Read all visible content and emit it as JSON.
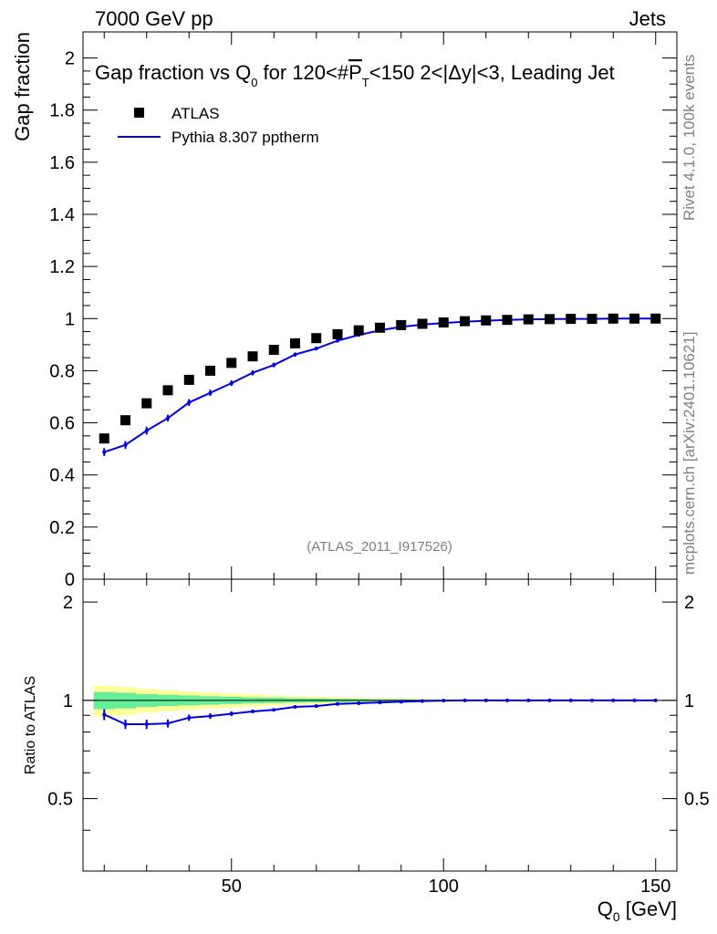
{
  "header": {
    "energy": "7000 GeV pp",
    "category": "Jets"
  },
  "side": {
    "rivet": "Rivet 4.1.0,  100k events",
    "source": "mcplots.cern.ch [arXiv:2401.10621]"
  },
  "colors": {
    "data": "#000000",
    "mc": "#0000e0",
    "band_inner": "#66ee99",
    "band_outer": "#ffff99"
  },
  "chart_data": {
    "type": "scatter",
    "title": "Gap fraction vs Q0 for 120<#PT<150  2<|Δy|<3, Leading Jet",
    "title_parts": {
      "a": "Gap fraction vs Q",
      "b": "0",
      "c": " for 120<#",
      "d": "P",
      "e": "T",
      "f": "<150  2<|Δy|<3, Leading Jet"
    },
    "analysis_label": "(ATLAS_2011_I917526)",
    "xlabel": "Q0 [GeV]",
    "xlabel_parts": {
      "a": "Q",
      "b": "0",
      "c": " [GeV]"
    },
    "ylabel": "Gap fraction",
    "ratio_ylabel": "Ratio to ATLAS",
    "xlim": [
      15,
      155
    ],
    "ylim": [
      0,
      2.1
    ],
    "ratio_ylim": [
      0.3,
      2.35
    ],
    "x_ticks": [
      "50",
      "100",
      "150"
    ],
    "y_ticks": [
      "0",
      "0.2",
      "0.4",
      "0.6",
      "0.8",
      "1",
      "1.2",
      "1.4",
      "1.6",
      "1.8",
      "2"
    ],
    "ratio_ticks": [
      "0.5",
      "1",
      "2"
    ],
    "legend": [
      {
        "name": "ATLAS",
        "style": "marker"
      },
      {
        "name": "Pythia 8.307 pptherm",
        "style": "line"
      }
    ],
    "x": [
      20,
      25,
      30,
      35,
      40,
      45,
      50,
      55,
      60,
      65,
      70,
      75,
      80,
      85,
      90,
      95,
      100,
      105,
      110,
      115,
      120,
      125,
      130,
      135,
      140,
      145,
      150
    ],
    "series": [
      {
        "name": "ATLAS",
        "values": [
          0.54,
          0.61,
          0.675,
          0.725,
          0.765,
          0.8,
          0.83,
          0.855,
          0.88,
          0.905,
          0.925,
          0.94,
          0.955,
          0.965,
          0.975,
          0.98,
          0.985,
          0.99,
          0.993,
          0.995,
          0.997,
          0.998,
          0.999,
          0.999,
          1.0,
          1.0,
          1.0
        ]
      },
      {
        "name": "Pythia 8.307 pptherm",
        "values": [
          0.488,
          0.515,
          0.57,
          0.618,
          0.678,
          0.715,
          0.752,
          0.792,
          0.822,
          0.862,
          0.885,
          0.915,
          0.937,
          0.955,
          0.968,
          0.977,
          0.983,
          0.988,
          0.992,
          0.995,
          0.997,
          0.998,
          0.999,
          0.999,
          1.0,
          1.0,
          1.0
        ],
        "errors": [
          0.015,
          0.015,
          0.015,
          0.013,
          0.013,
          0.012,
          0.011,
          0.01,
          0.009,
          0.008,
          0.007,
          0.006,
          0.005,
          0.004,
          0.003,
          0.002,
          0.002,
          0.001,
          0.001,
          0.001,
          0.001,
          0.001,
          0.001,
          0.001,
          0.001,
          0.001,
          0.001
        ]
      }
    ],
    "ratio": [
      0.905,
      0.845,
      0.845,
      0.85,
      0.885,
      0.895,
      0.91,
      0.925,
      0.935,
      0.955,
      0.96,
      0.975,
      0.98,
      0.985,
      0.99,
      0.995,
      0.998,
      1.0,
      1.0,
      1.0,
      1.0,
      1.0,
      1.0,
      1.0,
      1.0,
      1.0,
      1.0
    ],
    "ratio_errors": [
      0.035,
      0.028,
      0.028,
      0.024,
      0.02,
      0.018,
      0.015,
      0.012,
      0.01,
      0.009,
      0.008,
      0.006,
      0.005,
      0.004,
      0.003,
      0.003,
      0.002,
      0.002,
      0.001,
      0.001,
      0.001,
      0.001,
      0.001,
      0.001,
      0.001,
      0.001,
      0.001
    ],
    "band_inner": [
      0.06,
      0.055,
      0.045,
      0.04,
      0.035,
      0.03,
      0.026,
      0.022,
      0.019,
      0.016,
      0.014,
      0.012,
      0.01,
      0.008,
      0.007,
      0.006,
      0.005,
      0.004,
      0.004,
      0.003,
      0.003,
      0.003,
      0.003,
      0.003,
      0.003,
      0.003,
      0.003
    ],
    "band_outer": [
      0.11,
      0.1,
      0.085,
      0.075,
      0.065,
      0.058,
      0.05,
      0.043,
      0.036,
      0.03,
      0.026,
      0.022,
      0.019,
      0.016,
      0.014,
      0.012,
      0.01,
      0.009,
      0.008,
      0.007,
      0.006,
      0.006,
      0.005,
      0.005,
      0.005,
      0.005,
      0.005
    ]
  }
}
